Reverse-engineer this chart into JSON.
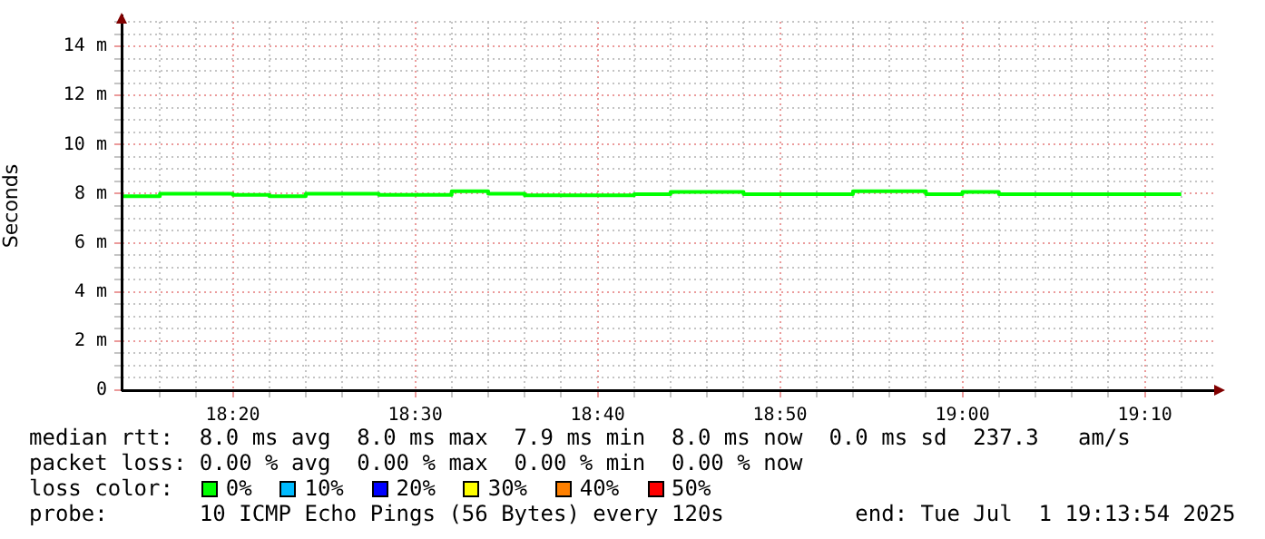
{
  "chart_data": {
    "type": "step",
    "ylabel": "Seconds",
    "x": [
      18.2333,
      18.2667,
      18.3,
      18.3333,
      18.3667,
      18.4,
      18.4333,
      18.4667,
      18.5,
      18.5333,
      18.5667,
      18.6,
      18.6333,
      18.6667,
      18.7,
      18.7333,
      18.7667,
      18.8,
      18.8333,
      18.8667,
      18.9,
      18.9333,
      18.9667,
      19,
      19.0333,
      19.0667,
      19.1,
      19.1333,
      19.1667,
      19.2
    ],
    "series": [
      {
        "color": "#00ff00",
        "values": [
          7.93,
          7.9,
          8,
          8,
          7.95,
          7.9,
          8,
          8,
          7.95,
          7.95,
          8.1,
          8,
          7.93,
          7.93,
          7.93,
          7.98,
          8.07,
          8.07,
          7.98,
          7.98,
          7.98,
          8.1,
          8.1,
          7.98,
          8.07,
          7.98,
          7.98,
          7.98,
          7.98,
          7.98
        ]
      }
    ],
    "xlim": [
      18.2317,
      19.2317
    ],
    "xticks": [
      {
        "value": 18.2667,
        "label": null
      },
      {
        "value": 18.3,
        "label": null
      },
      {
        "value": 18.3333,
        "label": "18:20"
      },
      {
        "value": 18.3667,
        "label": null
      },
      {
        "value": 18.4,
        "label": null
      },
      {
        "value": 18.4333,
        "label": null
      },
      {
        "value": 18.4667,
        "label": null
      },
      {
        "value": 18.5,
        "label": "18:30"
      },
      {
        "value": 18.5333,
        "label": null
      },
      {
        "value": 18.5667,
        "label": null
      },
      {
        "value": 18.6,
        "label": null
      },
      {
        "value": 18.6333,
        "label": null
      },
      {
        "value": 18.6667,
        "label": "18:40"
      },
      {
        "value": 18.7,
        "label": null
      },
      {
        "value": 18.7333,
        "label": null
      },
      {
        "value": 18.7667,
        "label": null
      },
      {
        "value": 18.8,
        "label": null
      },
      {
        "value": 18.8333,
        "label": "18:50"
      },
      {
        "value": 18.8667,
        "label": null
      },
      {
        "value": 18.9,
        "label": null
      },
      {
        "value": 18.9333,
        "label": null
      },
      {
        "value": 18.9667,
        "label": null
      },
      {
        "value": 19,
        "label": "19:00"
      },
      {
        "value": 19.0333,
        "label": null
      },
      {
        "value": 19.0667,
        "label": null
      },
      {
        "value": 19.1,
        "label": null
      },
      {
        "value": 19.1333,
        "label": null
      },
      {
        "value": 19.1667,
        "label": "19:10"
      },
      {
        "value": 19.2,
        "label": null
      }
    ],
    "ylim": [
      0,
      15
    ],
    "yticks": [
      0,
      {
        "value": 0.5,
        "label": null
      },
      {
        "value": 1,
        "label": null
      },
      {
        "value": 1.5,
        "label": null
      },
      {
        "value": 2,
        "label": "2 m"
      },
      {
        "value": 2.5,
        "label": null
      },
      {
        "value": 3,
        "label": null
      },
      {
        "value": 3.5,
        "label": null
      },
      {
        "value": 4,
        "label": "4 m"
      },
      {
        "value": 4.5,
        "label": null
      },
      {
        "value": 5,
        "label": null
      },
      {
        "value": 5.5,
        "label": null
      },
      {
        "value": 6,
        "label": "6 m"
      },
      {
        "value": 6.5,
        "label": null
      },
      {
        "value": 7,
        "label": null
      },
      {
        "value": 7.5,
        "label": null
      },
      {
        "value": 8,
        "label": "8 m"
      },
      {
        "value": 8.5,
        "label": null
      },
      {
        "value": 9,
        "label": null
      },
      {
        "value": 9.5,
        "label": null
      },
      {
        "value": 10,
        "label": "10 m"
      },
      {
        "value": 10.5,
        "label": null
      },
      {
        "value": 11,
        "label": null
      },
      {
        "value": 11.5,
        "label": null
      },
      {
        "value": 12,
        "label": "12 m"
      },
      {
        "value": 12.5,
        "label": null
      },
      {
        "value": 13,
        "label": null
      },
      {
        "value": 13.5,
        "label": null
      },
      {
        "value": 14,
        "label": "14 m"
      },
      {
        "value": 14.5,
        "label": null
      },
      {
        "value": 15,
        "label": null
      }
    ],
    "grid": true,
    "legend": false,
    "marker": "none",
    "line_style": "solid",
    "annotations": [
      "median rtt:  8.0 ms avg  8.0 ms max  7.9 ms min  8.0 ms now  0.0 ms sd  237.3   am/s",
      "packet loss: 0.00 % avg  0.00 % max  0.00 % min  0.00 % now",
      "loss color:    0%    10%    20%    30%    40%    50%",
      "probe:       10 ICMP Echo Pings (56 Bytes) every 120s          end: Tue Jul  1 19:13:54 2025"
    ]
  }
}
